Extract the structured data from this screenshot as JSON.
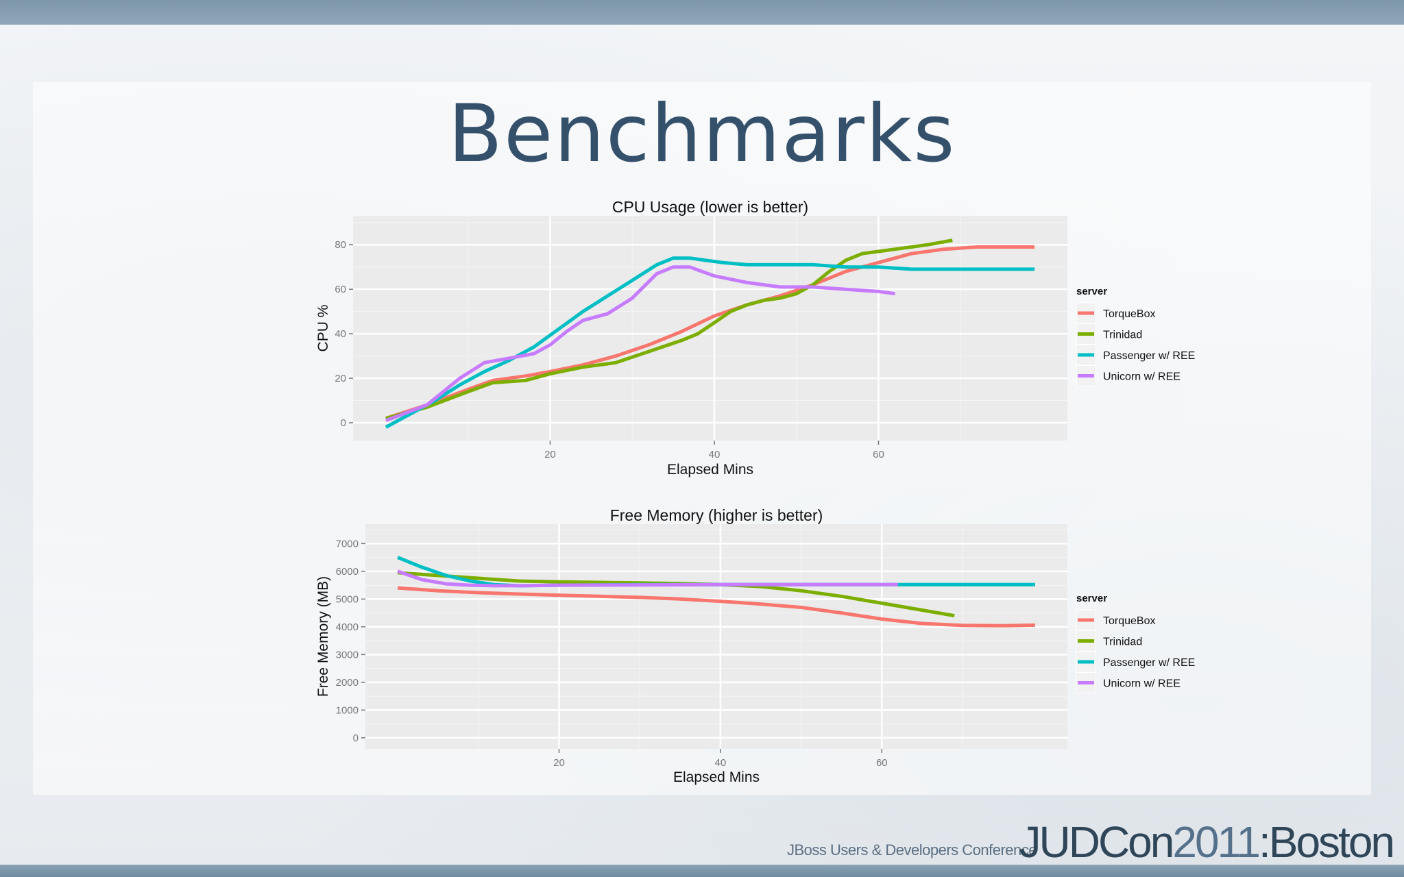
{
  "slide": {
    "title": "Benchmarks",
    "footer_subtitle": "JBoss Users & Developers Conference",
    "footer_brand_a": "JUDCon",
    "footer_brand_b": "2011",
    "footer_brand_c": ":Boston"
  },
  "colors": {
    "TorqueBox": "#f8766d",
    "Trinidad": "#7cae00",
    "Passenger w/ REE": "#00bfc4",
    "Unicorn w/ REE": "#c77cff",
    "title": "#34506b",
    "panel_bg": "#ebebeb"
  },
  "chart_data": [
    {
      "type": "line",
      "title": "CPU Usage (lower is better)",
      "xlabel": "Elapsed Mins",
      "ylabel": "CPU %",
      "xlim": [
        -4,
        83
      ],
      "ylim": [
        -8,
        93
      ],
      "xticks": [
        20,
        40,
        60
      ],
      "yticks": [
        0,
        20,
        40,
        60,
        80
      ],
      "grid": true,
      "legend_title": "server",
      "legend_position": "right",
      "series": [
        {
          "name": "TorqueBox",
          "x": [
            0,
            5,
            10,
            13,
            17,
            20,
            24,
            28,
            32,
            36,
            40,
            44,
            48,
            52,
            56,
            60,
            64,
            68,
            72,
            76,
            79
          ],
          "y": [
            2,
            8,
            15,
            19,
            21,
            23,
            26,
            30,
            35,
            41,
            48,
            53,
            57,
            62,
            68,
            72,
            76,
            78,
            79,
            79,
            79
          ]
        },
        {
          "name": "Trinidad",
          "x": [
            0,
            5,
            10,
            13,
            17,
            20,
            24,
            28,
            32,
            36,
            38,
            40,
            42,
            44,
            46,
            48,
            50,
            52,
            54,
            56,
            58,
            60,
            62,
            64,
            66,
            69
          ],
          "y": [
            2,
            7,
            14,
            18,
            19,
            22,
            25,
            27,
            32,
            37,
            40,
            45,
            50,
            53,
            55,
            56,
            58,
            62,
            68,
            73,
            76,
            77,
            78,
            79,
            80,
            82
          ]
        },
        {
          "name": "Passenger w/ REE",
          "x": [
            0,
            3,
            6,
            9,
            12,
            15,
            18,
            21,
            24,
            27,
            30,
            33,
            35,
            37,
            39,
            41,
            44,
            48,
            52,
            56,
            60,
            64,
            68,
            72,
            76,
            79
          ],
          "y": [
            -2,
            4,
            10,
            17,
            23,
            28,
            34,
            42,
            50,
            57,
            64,
            71,
            74,
            74,
            73,
            72,
            71,
            71,
            71,
            70,
            70,
            69,
            69,
            69,
            69,
            69
          ]
        },
        {
          "name": "Unicorn w/ REE",
          "x": [
            0,
            5,
            9,
            12,
            15,
            18,
            20,
            22,
            24,
            27,
            30,
            33,
            35,
            37,
            40,
            44,
            48,
            52,
            56,
            60,
            62
          ],
          "y": [
            1,
            8,
            20,
            27,
            29,
            31,
            35,
            41,
            46,
            49,
            56,
            67,
            70,
            70,
            66,
            63,
            61,
            61,
            60,
            59,
            58
          ]
        }
      ]
    },
    {
      "type": "line",
      "title": "Free Memory (higher is better)",
      "xlabel": "Elapsed Mins",
      "ylabel": "Free Memory (MB)",
      "xlim": [
        -4,
        83
      ],
      "ylim": [
        -400,
        7700
      ],
      "xticks": [
        20,
        40,
        60
      ],
      "yticks": [
        0,
        1000,
        2000,
        3000,
        4000,
        5000,
        6000,
        7000
      ],
      "grid": true,
      "legend_title": "server",
      "legend_position": "right",
      "series": [
        {
          "name": "TorqueBox",
          "x": [
            0,
            5,
            10,
            15,
            20,
            25,
            30,
            35,
            40,
            45,
            50,
            55,
            60,
            65,
            70,
            75,
            79
          ],
          "y": [
            5400,
            5300,
            5230,
            5180,
            5140,
            5100,
            5060,
            5000,
            4920,
            4820,
            4700,
            4500,
            4280,
            4120,
            4050,
            4040,
            4060
          ]
        },
        {
          "name": "Trinidad",
          "x": [
            0,
            5,
            10,
            15,
            20,
            25,
            30,
            35,
            40,
            45,
            50,
            55,
            60,
            65,
            69
          ],
          "y": [
            5950,
            5850,
            5750,
            5650,
            5620,
            5600,
            5580,
            5560,
            5520,
            5450,
            5300,
            5100,
            4850,
            4600,
            4400
          ]
        },
        {
          "name": "Passenger w/ REE",
          "x": [
            0,
            3,
            6,
            9,
            12,
            15,
            20,
            30,
            40,
            50,
            60,
            70,
            79
          ],
          "y": [
            6500,
            6150,
            5850,
            5650,
            5520,
            5480,
            5500,
            5520,
            5520,
            5520,
            5520,
            5520,
            5520
          ]
        },
        {
          "name": "Unicorn w/ REE",
          "x": [
            0,
            3,
            6,
            9,
            12,
            15,
            20,
            30,
            40,
            50,
            60,
            62
          ],
          "y": [
            6000,
            5700,
            5550,
            5500,
            5480,
            5480,
            5500,
            5510,
            5520,
            5520,
            5520,
            5520
          ]
        }
      ]
    }
  ]
}
